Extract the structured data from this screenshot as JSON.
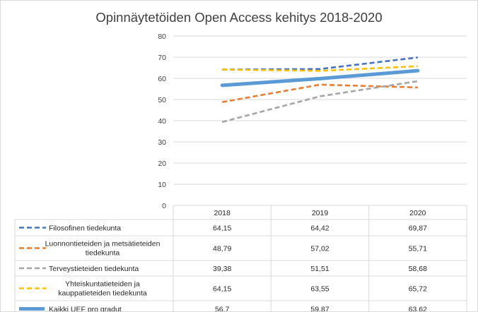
{
  "chart_data": {
    "type": "line",
    "title": "Opinnäytetöiden Open Access kehitys 2018-2020",
    "categories": [
      "2018",
      "2019",
      "2020"
    ],
    "ylim": [
      0,
      80
    ],
    "yticks": [
      "0",
      "10",
      "20",
      "30",
      "40",
      "50",
      "60",
      "70",
      "80"
    ],
    "grid": true,
    "legend": "data table",
    "series": [
      {
        "name": "Filosofinen tiedekunta",
        "label_lines": [
          "Filosofinen tiedekunta"
        ],
        "values": [
          64.15,
          64.42,
          69.87
        ],
        "labels": [
          "64,15",
          "64,42",
          "69,87"
        ],
        "color": "#4472C4",
        "style": "dashed"
      },
      {
        "name": "Luonnontieteiden ja metsätieteiden tiedekunta",
        "label_lines": [
          "Luonnontieteiden ja metsätieteiden",
          "tiedekunta"
        ],
        "values": [
          48.79,
          57.02,
          55.71
        ],
        "labels": [
          "48,79",
          "57,02",
          "55,71"
        ],
        "color": "#ED7D31",
        "style": "dashed"
      },
      {
        "name": "Terveystieteiden tiedekunta",
        "label_lines": [
          "Terveystieteiden tiedekunta"
        ],
        "values": [
          39.38,
          51.51,
          58.68
        ],
        "labels": [
          "39,38",
          "51,51",
          "58,68"
        ],
        "color": "#A5A5A5",
        "style": "dashed"
      },
      {
        "name": "Yhteiskuntatieteiden ja kauppatieteiden tiedekunta",
        "label_lines": [
          "Yhteiskuntatieteiden ja",
          "kauppatieteiden tiedekunta"
        ],
        "values": [
          64.15,
          63.55,
          65.72
        ],
        "labels": [
          "64,15",
          "63,55",
          "65,72"
        ],
        "color": "#FFC000",
        "style": "dashed"
      },
      {
        "name": "Kaikki UEF pro gradut",
        "label_lines": [
          "Kaikki UEF pro gradut"
        ],
        "values": [
          56.7,
          59.87,
          63.62
        ],
        "labels": [
          "56,7",
          "59,87",
          "63,62"
        ],
        "color": "#5B9BD5",
        "style": "solid"
      }
    ]
  }
}
